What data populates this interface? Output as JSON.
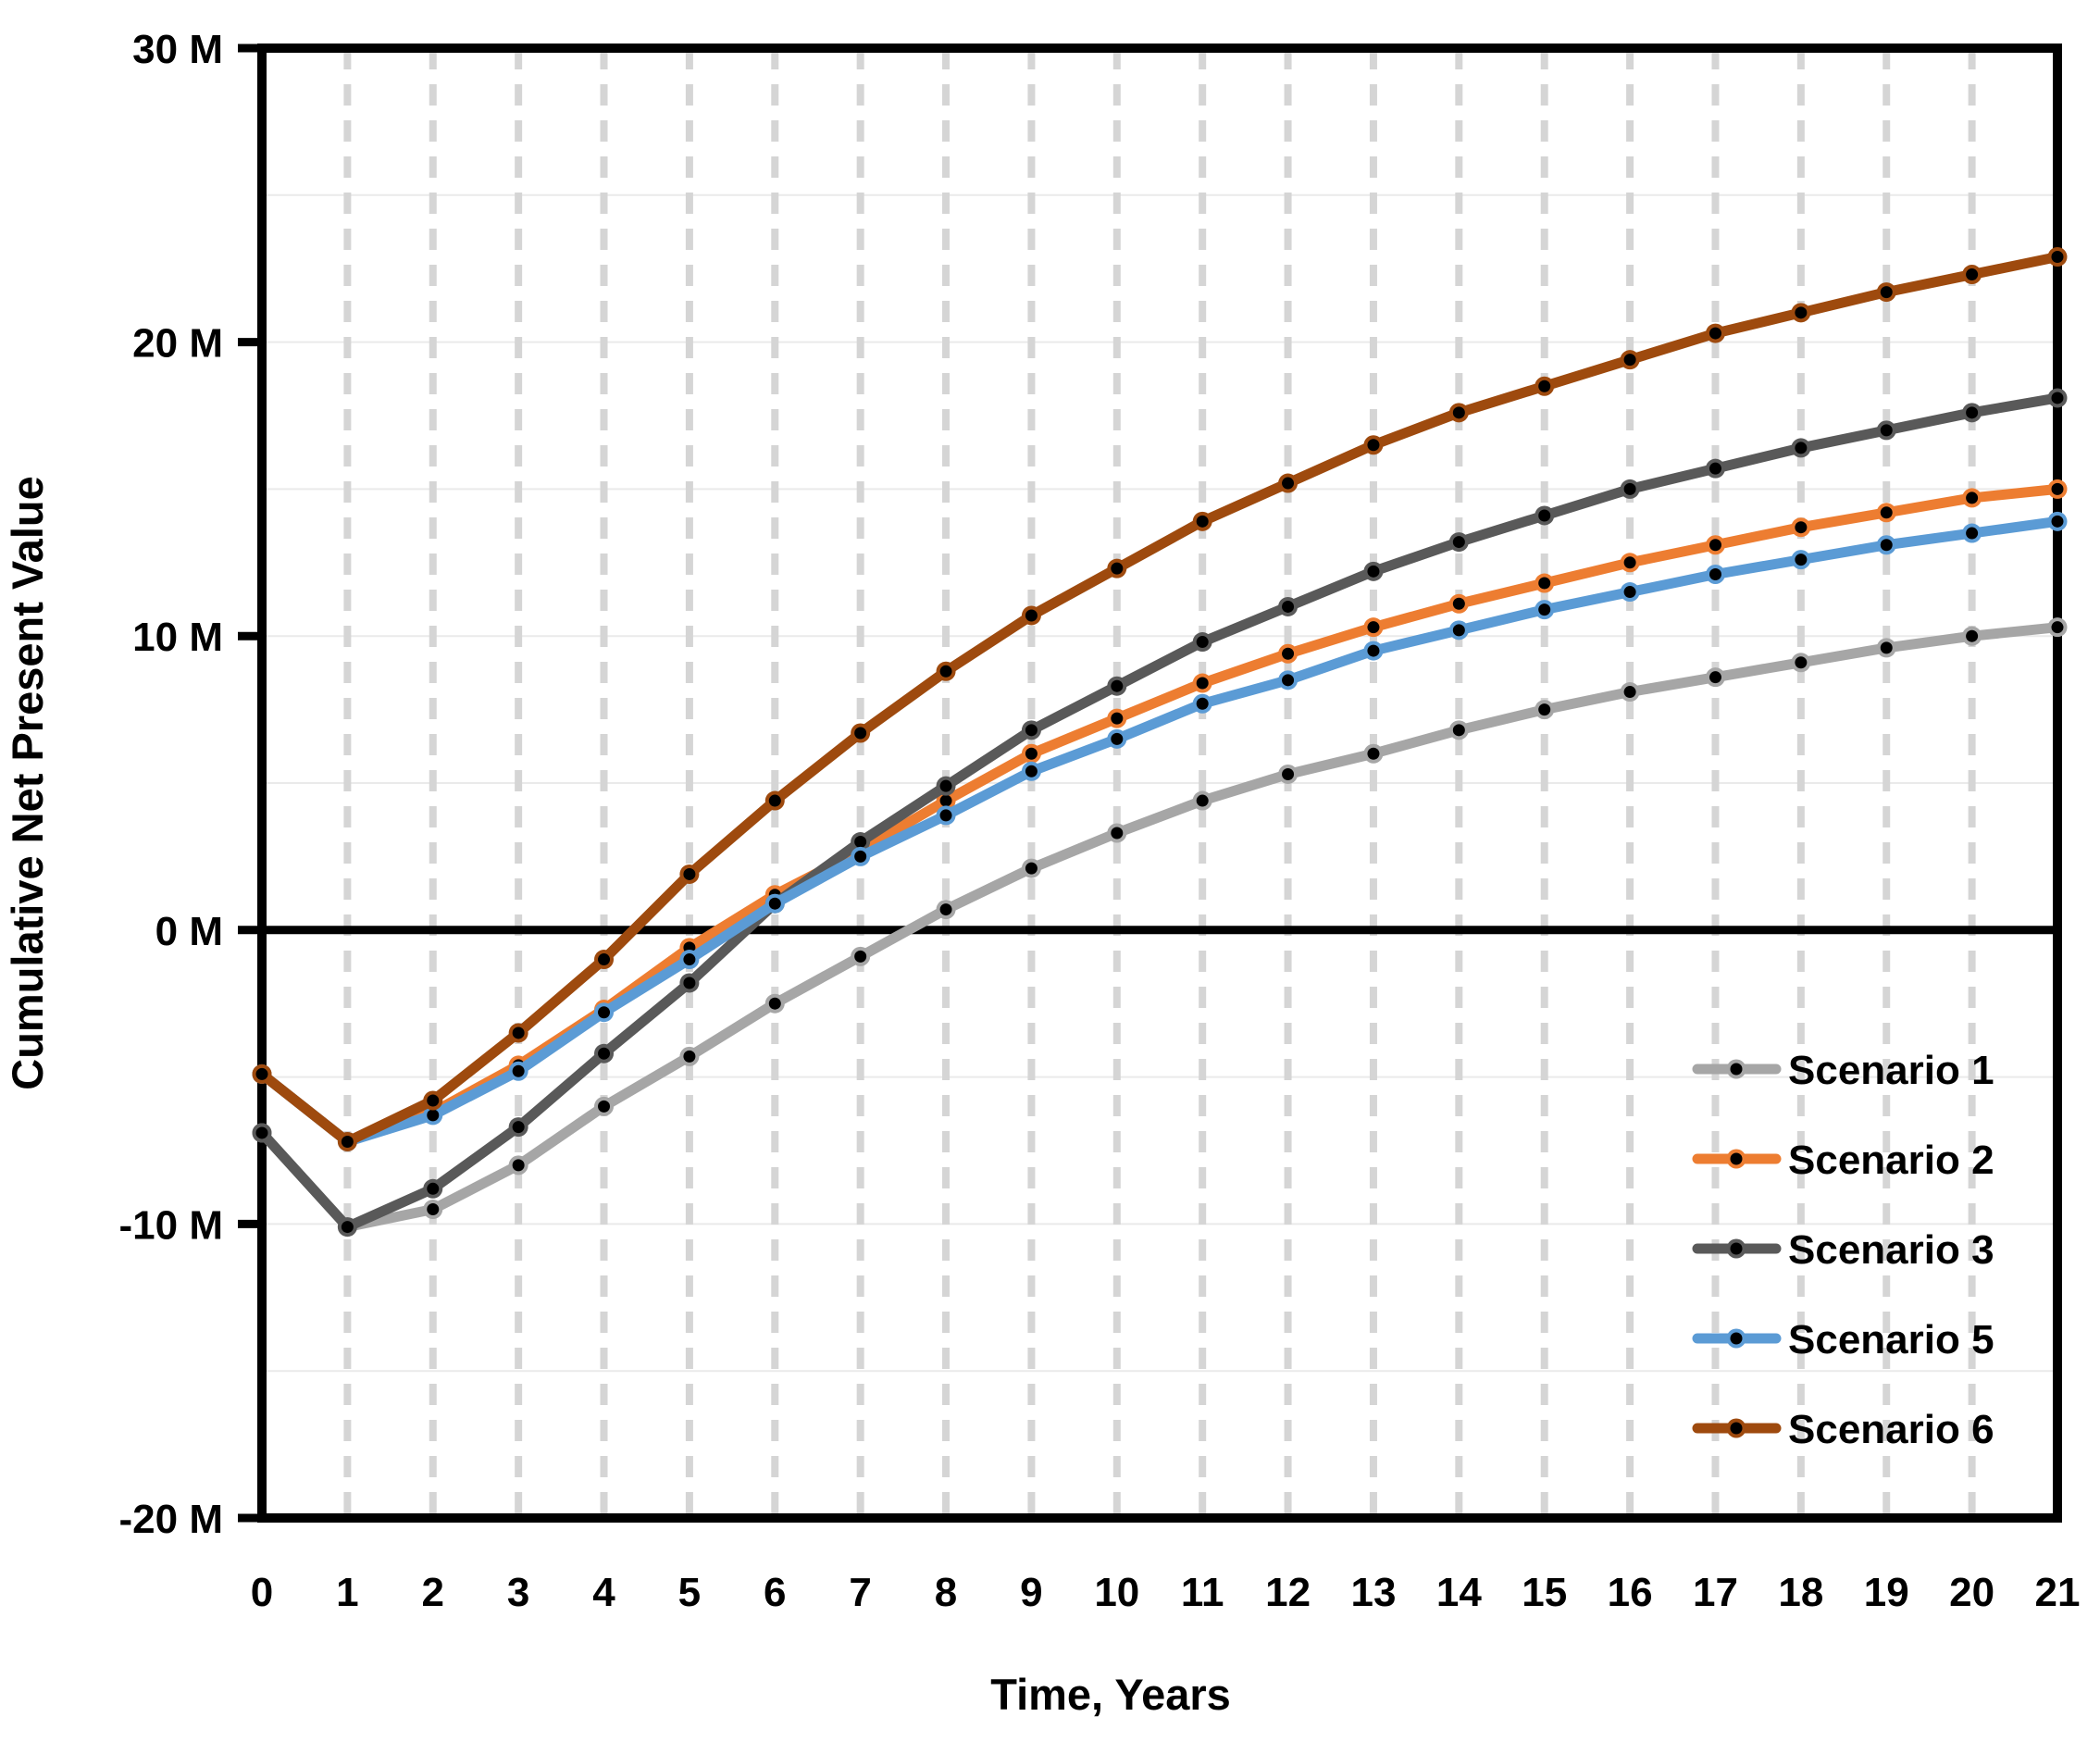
{
  "chart_data": {
    "type": "line",
    "title": "",
    "xlabel": "Time, Years",
    "ylabel": "Cumulative Net Present Value",
    "x": [
      0,
      1,
      2,
      3,
      4,
      5,
      6,
      7,
      8,
      9,
      10,
      11,
      12,
      13,
      14,
      15,
      16,
      17,
      18,
      19,
      20,
      21
    ],
    "xtick_labels": [
      "0",
      "1",
      "2",
      "3",
      "4",
      "5",
      "6",
      "7",
      "8",
      "9",
      "10",
      "11",
      "12",
      "13",
      "14",
      "15",
      "16",
      "17",
      "18",
      "19",
      "20",
      "21"
    ],
    "xlim": [
      0,
      21
    ],
    "ylim": [
      -20,
      30
    ],
    "yticks": [
      {
        "value": 30,
        "label": "30 M"
      },
      {
        "value": 20,
        "label": "20 M"
      },
      {
        "value": 10,
        "label": "10 M"
      },
      {
        "value": 0,
        "label": "0 M"
      },
      {
        "value": -10,
        "label": "-10 M"
      },
      {
        "value": -20,
        "label": "-20 M"
      }
    ],
    "ygrid_step_m": 5,
    "grid": {
      "horizontal": "light solid every 5 M",
      "vertical": "light dashed every 1 year"
    },
    "legend_position": "inside-lower-right",
    "marker": {
      "shape": "circle-dot",
      "dot_color": "#000000"
    },
    "series": [
      {
        "name": "Scenario 1",
        "color": "#A6A6A6",
        "values": [
          -6.9,
          -10.1,
          -9.5,
          -8.0,
          -6.0,
          -4.3,
          -2.5,
          -0.9,
          0.7,
          2.1,
          3.3,
          4.4,
          5.3,
          6.0,
          6.8,
          7.5,
          8.1,
          8.6,
          9.1,
          9.6,
          10.0,
          10.3
        ]
      },
      {
        "name": "Scenario 2",
        "color": "#ED7D31",
        "values": [
          -4.9,
          -7.2,
          -6.2,
          -4.6,
          -2.7,
          -0.6,
          1.2,
          2.7,
          4.4,
          6.0,
          7.2,
          8.4,
          9.4,
          10.3,
          11.1,
          11.8,
          12.5,
          13.1,
          13.7,
          14.2,
          14.7,
          15.0
        ]
      },
      {
        "name": "Scenario 3",
        "color": "#595959",
        "values": [
          -6.9,
          -10.1,
          -8.8,
          -6.7,
          -4.2,
          -1.8,
          0.9,
          3.0,
          4.9,
          6.8,
          8.3,
          9.8,
          11.0,
          12.2,
          13.2,
          14.1,
          15.0,
          15.7,
          16.4,
          17.0,
          17.6,
          18.1
        ]
      },
      {
        "name": "Scenario 5",
        "color": "#5B9BD5",
        "values": [
          -4.9,
          -7.2,
          -6.3,
          -4.8,
          -2.8,
          -1.0,
          0.9,
          2.5,
          3.9,
          5.4,
          6.5,
          7.7,
          8.5,
          9.5,
          10.2,
          10.9,
          11.5,
          12.1,
          12.6,
          13.1,
          13.5,
          13.9
        ]
      },
      {
        "name": "Scenario 6",
        "color": "#9E4A0E",
        "values": [
          -4.9,
          -7.2,
          -5.8,
          -3.5,
          -1.0,
          1.9,
          4.4,
          6.7,
          8.8,
          10.7,
          12.3,
          13.9,
          15.2,
          16.5,
          17.6,
          18.5,
          19.4,
          20.3,
          21.0,
          21.7,
          22.3,
          22.9
        ]
      }
    ]
  },
  "styles": {
    "background": "#FFFFFF",
    "frame_color": "#000000",
    "zero_line_color": "#000000",
    "hgrid_color": "#EAEAEA",
    "vgrid_color": "#D5D5D5",
    "text_color": "#000000"
  }
}
